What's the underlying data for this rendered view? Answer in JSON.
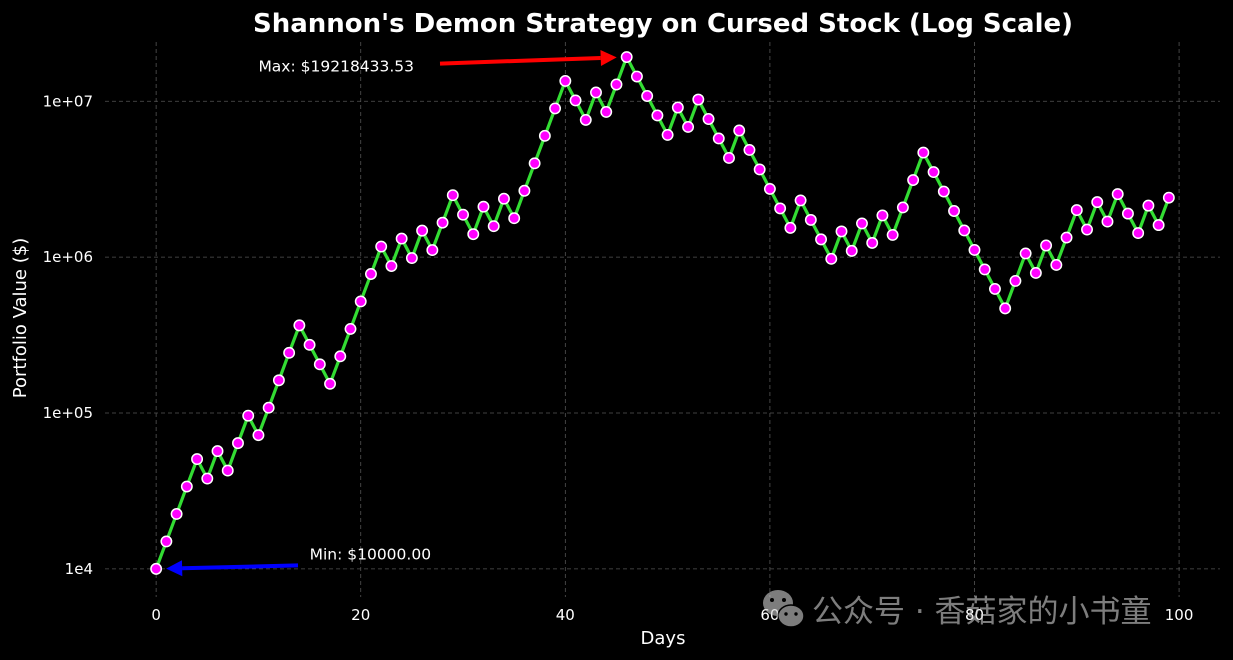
{
  "chart_data": {
    "type": "line",
    "title": "Shannon's Demon Strategy on Cursed Stock (Log Scale)",
    "xlabel": "Days",
    "ylabel": "Portfolio Value ($)",
    "xlim": [
      -5,
      104
    ],
    "ylim": [
      6600,
      24000000
    ],
    "yscale": "log",
    "grid": true,
    "xticks": [
      0,
      20,
      40,
      60,
      80,
      100
    ],
    "xtick_labels": [
      "0",
      "20",
      "40",
      "60",
      "80",
      "100"
    ],
    "yticks": [
      10000,
      100000,
      1000000,
      10000000
    ],
    "ytick_labels": [
      "1e4",
      "1e+05",
      "1e+06",
      "1e+07"
    ],
    "series": [
      {
        "line_color": "#33dd33",
        "marker_color": "#ff00ff",
        "marker_edge_color": "#ffffff",
        "x": [
          0,
          1,
          2,
          3,
          4,
          5,
          6,
          7,
          8,
          9,
          10,
          11,
          12,
          13,
          14,
          15,
          16,
          17,
          18,
          19,
          20,
          21,
          22,
          23,
          24,
          25,
          26,
          27,
          28,
          29,
          30,
          31,
          32,
          33,
          34,
          35,
          36,
          37,
          38,
          39,
          40,
          41,
          42,
          43,
          44,
          45,
          46,
          47,
          48,
          49,
          50,
          51,
          52,
          53,
          54,
          55,
          56,
          57,
          58,
          59,
          60,
          61,
          62,
          63,
          64,
          65,
          66,
          67,
          68,
          69,
          70,
          71,
          72,
          73,
          74,
          75,
          76,
          77,
          78,
          79,
          80,
          81,
          82,
          83,
          84,
          85,
          86,
          87,
          88,
          89,
          90,
          91,
          92,
          93,
          94,
          95,
          96,
          97,
          98,
          99
        ],
        "y": [
          10000,
          15000,
          22500,
          33750,
          50625,
          37969,
          56953,
          42715,
          64072,
          96108,
          72081,
          108122,
          162183,
          243274,
          364911,
          273683,
          205262,
          153947,
          230920,
          346380,
          519570,
          779355,
          1169032,
          876774,
          1315161,
          986371,
          1479556,
          1109667,
          1664501,
          2496751,
          1872563,
          1404422,
          2106634,
          1579975,
          2369963,
          1777472,
          2666208,
          3999312,
          5998968,
          8998452,
          13497678,
          10123259,
          7592444,
          11388666,
          8541500,
          12812249,
          19218433,
          14413825,
          10810369,
          8107777,
          6080832,
          9121248,
          6840936,
          10261404,
          7696053,
          5772040,
          4329030,
          6493545,
          4870159,
          3652619,
          2739464,
          2054598,
          1540949,
          2311423,
          1733567,
          1300175,
          975132,
          1462698,
          1097023,
          1645535,
          1234151,
          1851227,
          1388420,
          2082630,
          3123945,
          4685918,
          3514438,
          2635829,
          1976872,
          1482654,
          1111990,
          833993,
          625494,
          469121,
          703681,
          1055522,
          791641,
          1187462,
          890597,
          1335895,
          2003843,
          1502882,
          2254323,
          1690742,
          2536113,
          1902085,
          1426563,
          2139845,
          1604884,
          2407326
        ]
      }
    ],
    "annotations": [
      {
        "text": "Max: $19218433.53",
        "point_x": 46,
        "point_y": 19218433.53,
        "text_x": 10,
        "text_y": 15500000,
        "arrow_color": "#ff0000"
      },
      {
        "text": "Min: $10000.00",
        "point_x": 0,
        "point_y": 10000,
        "text_x": 15,
        "text_y": 11500,
        "arrow_color": "#0000ff"
      }
    ],
    "background": "#000000",
    "grid_color": "#555555"
  },
  "watermark": {
    "icon": "wechat-icon",
    "text": "公众号 · 香菇家的小书童"
  }
}
